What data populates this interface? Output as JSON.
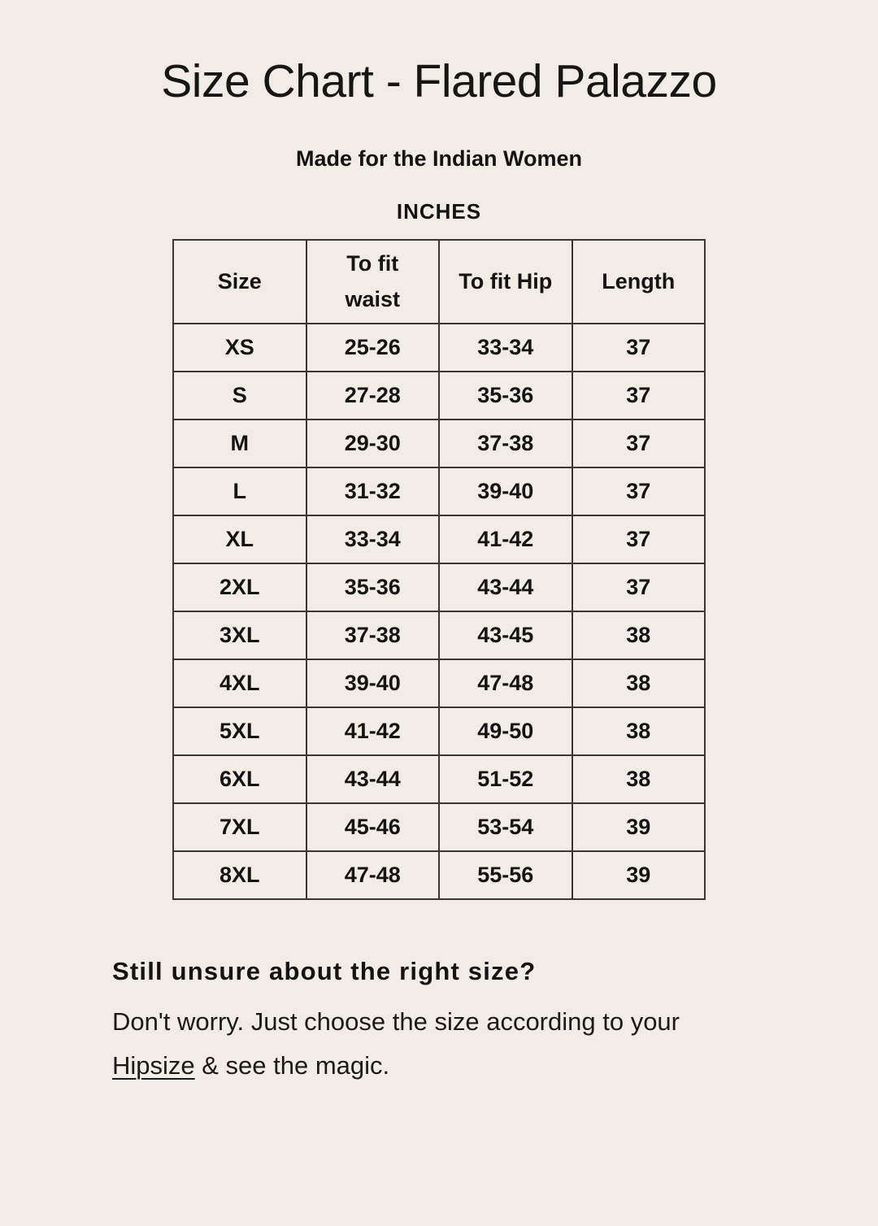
{
  "page": {
    "title": "Size Chart - Flared Palazzo",
    "subtitle": "Made for the Indian Women",
    "unit_label": "INCHES"
  },
  "table": {
    "headers": [
      "Size",
      "To fit waist",
      "To fit Hip",
      "Length"
    ],
    "rows": [
      [
        "XS",
        "25-26",
        "33-34",
        "37"
      ],
      [
        "S",
        "27-28",
        "35-36",
        "37"
      ],
      [
        "M",
        "29-30",
        "37-38",
        "37"
      ],
      [
        "L",
        "31-32",
        "39-40",
        "37"
      ],
      [
        "XL",
        "33-34",
        "41-42",
        "37"
      ],
      [
        "2XL",
        "35-36",
        "43-44",
        "37"
      ],
      [
        "3XL",
        "37-38",
        "43-45",
        "38"
      ],
      [
        "4XL",
        "39-40",
        "47-48",
        "38"
      ],
      [
        "5XL",
        "41-42",
        "49-50",
        "38"
      ],
      [
        "6XL",
        "43-44",
        "51-52",
        "38"
      ],
      [
        "7XL",
        "45-46",
        "53-54",
        "39"
      ],
      [
        "8XL",
        "47-48",
        "55-56",
        "39"
      ]
    ]
  },
  "footer": {
    "heading": "Still unsure about the right size?",
    "body_line1": "Don't worry. Just choose the size according to your",
    "link_text": "Hipsize",
    "body_line2_rest": " & see the magic."
  },
  "colors": {
    "background": "#f1ece5",
    "text": "#1a1a1a",
    "table_border": "#3a3631"
  }
}
